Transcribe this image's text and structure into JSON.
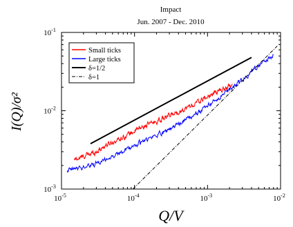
{
  "chart_data": {
    "type": "line",
    "title": "Impact",
    "subtitle": "Jun. 2007 - Dec. 2010",
    "xlabel": "Q/V",
    "ylabel": "I(Q)/σ²",
    "xscale": "log",
    "yscale": "log",
    "xlim": [
      1e-05,
      0.01
    ],
    "ylim": [
      0.001,
      0.1
    ],
    "grid": false,
    "legend_position": "top-left",
    "x_tick_labels": [
      {
        "value": 1e-05,
        "mant": "10",
        "exp": "-5"
      },
      {
        "value": 0.0001,
        "mant": "10",
        "exp": "-4"
      },
      {
        "value": 0.001,
        "mant": "10",
        "exp": "-3"
      },
      {
        "value": 0.01,
        "mant": "10",
        "exp": "-2"
      }
    ],
    "y_tick_labels": [
      {
        "value": 0.001,
        "mant": "10",
        "exp": "-3"
      },
      {
        "value": 0.01,
        "mant": "10",
        "exp": "-2"
      },
      {
        "value": 0.1,
        "mant": "10",
        "exp": "-1"
      }
    ],
    "series": [
      {
        "name": "Small ticks",
        "color": "#ff0000",
        "style": "noisy",
        "points": [
          [
            1.5e-05,
            0.00235
          ],
          [
            2e-05,
            0.0026
          ],
          [
            3e-05,
            0.003
          ],
          [
            4e-05,
            0.0036
          ],
          [
            6e-05,
            0.0043
          ],
          [
            0.0001,
            0.0055
          ],
          [
            0.00015,
            0.0066
          ],
          [
            0.0002,
            0.0073
          ],
          [
            0.0003,
            0.0086
          ],
          [
            0.0005,
            0.0107
          ],
          [
            0.0007,
            0.0125
          ],
          [
            0.001,
            0.015
          ],
          [
            0.0015,
            0.0182
          ],
          [
            0.0022,
            0.0215
          ]
        ]
      },
      {
        "name": "Large ticks",
        "color": "#0000ff",
        "style": "noisy",
        "points": [
          [
            1.2e-05,
            0.0017
          ],
          [
            2e-05,
            0.0019
          ],
          [
            3e-05,
            0.0021
          ],
          [
            4e-05,
            0.0024
          ],
          [
            6e-05,
            0.0028
          ],
          [
            0.0001,
            0.0036
          ],
          [
            0.00015,
            0.0043
          ],
          [
            0.0002,
            0.0049
          ],
          [
            0.0003,
            0.0058
          ],
          [
            0.0005,
            0.0076
          ],
          [
            0.0007,
            0.0092
          ],
          [
            0.001,
            0.0115
          ],
          [
            0.0015,
            0.0152
          ],
          [
            0.0025,
            0.0215
          ],
          [
            0.004,
            0.031
          ],
          [
            0.006,
            0.042
          ],
          [
            0.008,
            0.051
          ]
        ]
      },
      {
        "name": "δ=1/2",
        "color": "#000000",
        "style": "solid",
        "points": [
          [
            2.5e-05,
            0.0038
          ],
          [
            0.004,
            0.048
          ]
        ]
      },
      {
        "name": "δ=1",
        "color": "#000000",
        "style": "dashdot",
        "points": [
          [
            9.5e-05,
            0.001
          ],
          [
            0.009,
            0.067
          ]
        ]
      }
    ]
  }
}
